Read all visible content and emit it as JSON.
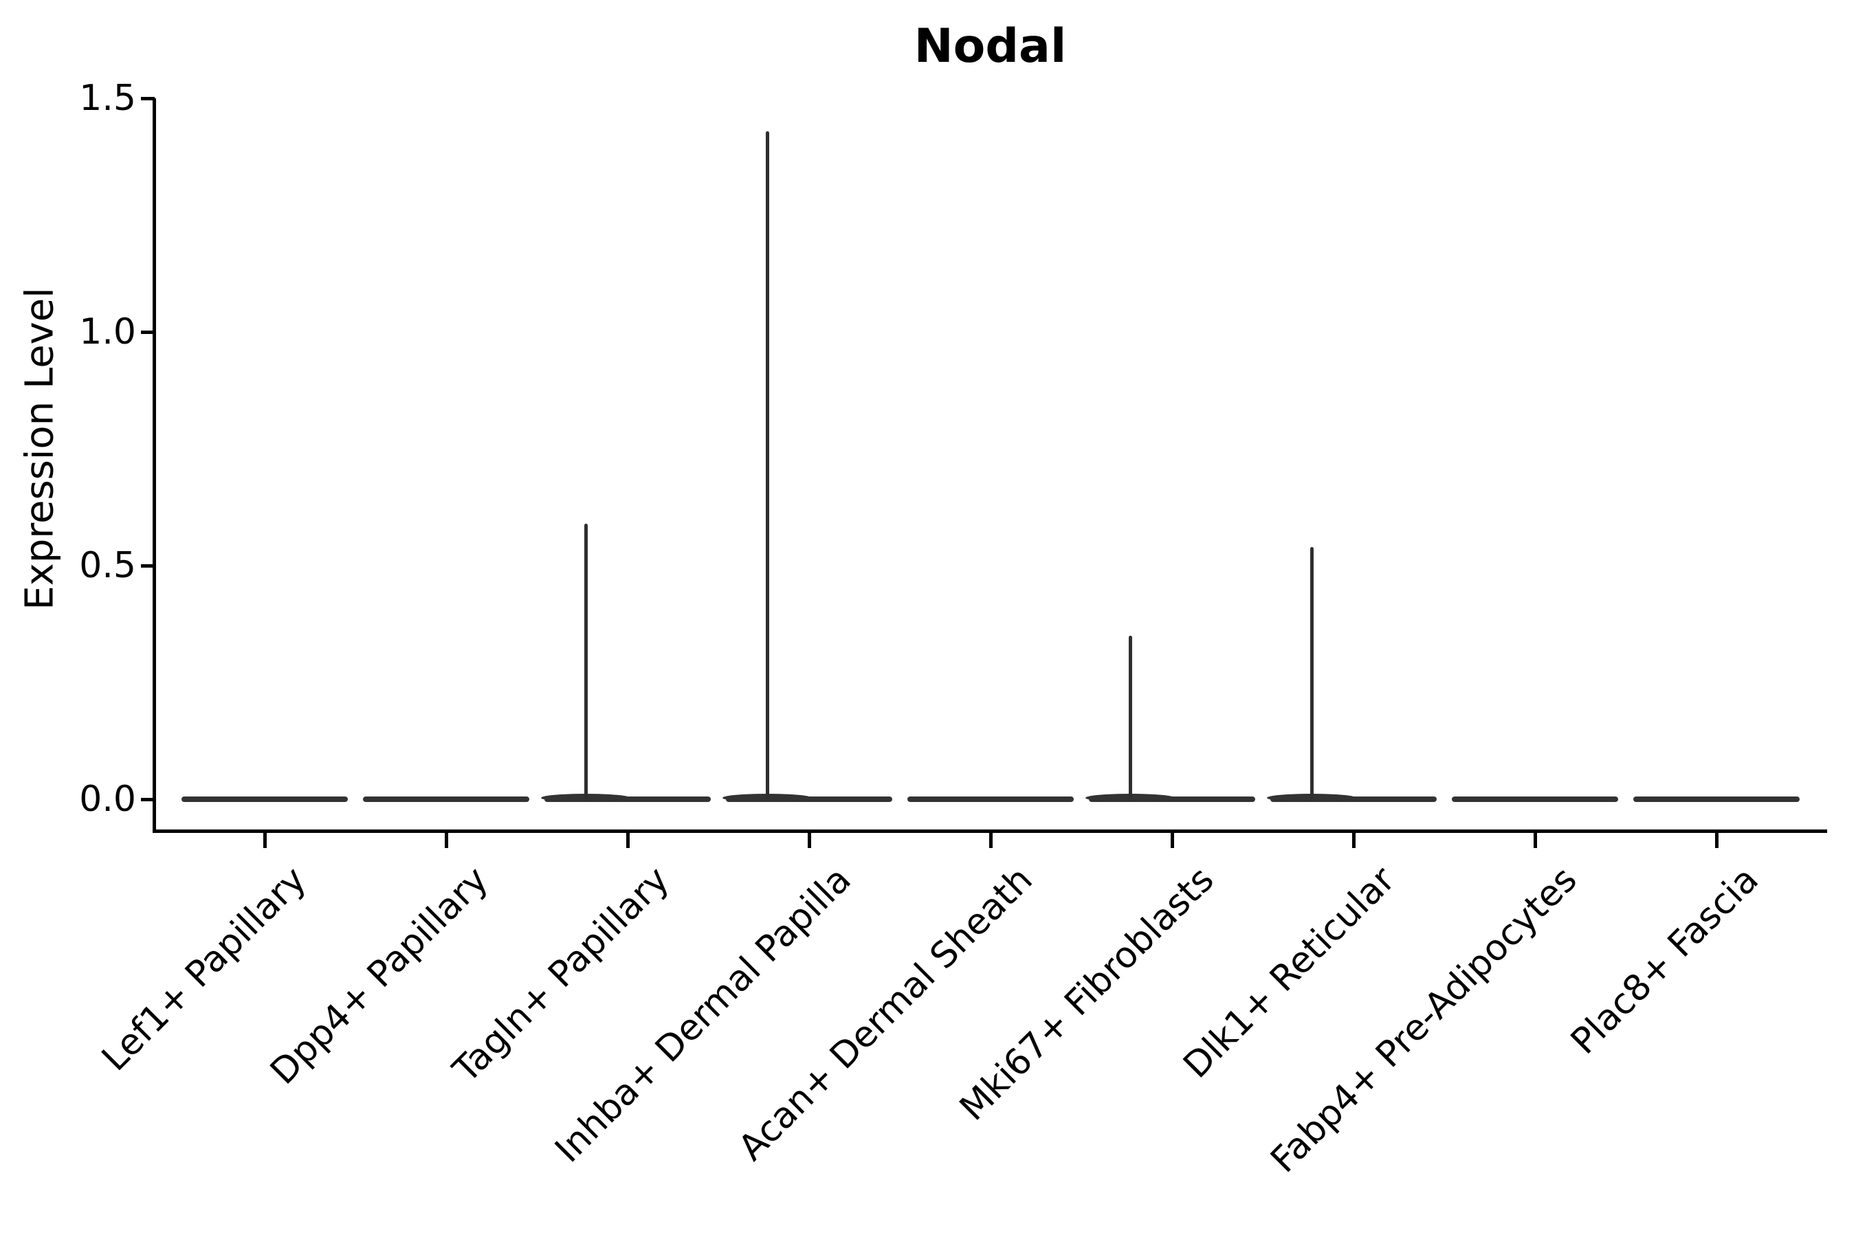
{
  "figure": {
    "title": "Nodal",
    "y_axis_label": "Expression Level"
  },
  "chart_data": {
    "type": "violin",
    "title": "Nodal",
    "xlabel": "",
    "ylabel": "Expression Level",
    "ylim": [
      0,
      1.5
    ],
    "ytick_values": [
      0.0,
      0.5,
      1.0,
      1.5
    ],
    "ytick_labels": [
      "0.0",
      "0.5",
      "1.0",
      "1.5"
    ],
    "grid": false,
    "legend_position": "none",
    "violin_color": "#303030",
    "categories": [
      "Lef1+ Papillary",
      "Dpp4+ Papillary",
      "Tagln+ Papillary",
      "Inhba+ Dermal Papilla",
      "Acan+ Dermal Sheath",
      "Mki67+ Fibroblasts",
      "Dlk1+ Reticular",
      "Fabp4+ Pre-Adipocytes",
      "Plac8+ Fascia"
    ],
    "series": [
      {
        "name": "Lef1+ Papillary",
        "baseline": 0.0,
        "max_expression": 0.0,
        "has_spike": false
      },
      {
        "name": "Dpp4+ Papillary",
        "baseline": 0.0,
        "max_expression": 0.0,
        "has_spike": false
      },
      {
        "name": "Tagln+ Papillary",
        "baseline": 0.0,
        "max_expression": 0.59,
        "has_spike": true
      },
      {
        "name": "Inhba+ Dermal Papilla",
        "baseline": 0.0,
        "max_expression": 1.43,
        "has_spike": true
      },
      {
        "name": "Acan+ Dermal Sheath",
        "baseline": 0.0,
        "max_expression": 0.0,
        "has_spike": false
      },
      {
        "name": "Mki67+ Fibroblasts",
        "baseline": 0.0,
        "max_expression": 0.35,
        "has_spike": true
      },
      {
        "name": "Dlk1+ Reticular",
        "baseline": 0.0,
        "max_expression": 0.54,
        "has_spike": true
      },
      {
        "name": "Fabp4+ Pre-Adipocytes",
        "baseline": 0.0,
        "max_expression": 0.0,
        "has_spike": false
      },
      {
        "name": "Plac8+ Fascia",
        "baseline": 0.0,
        "max_expression": 0.0,
        "has_spike": false
      }
    ]
  }
}
